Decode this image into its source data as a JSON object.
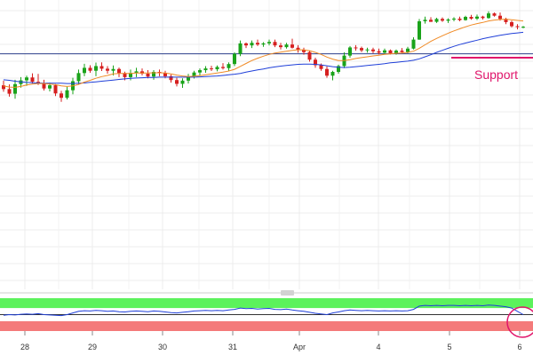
{
  "chart_data": [
    {
      "type": "candlestick",
      "x_ticks": [
        "28",
        "29",
        "30",
        "31",
        "Apr",
        "4",
        "5",
        "6"
      ],
      "price_range": [
        0.0,
        100.0
      ],
      "grid": true,
      "horizontal_line_level": 81.5,
      "support": {
        "label": "Support",
        "level": 80.2,
        "color": "#e0156b"
      },
      "colors": {
        "up": "#1aa31a",
        "down": "#d62020",
        "ma_fast": "#f08a24",
        "ma_slow": "#1f3fd8",
        "hline": "#2b3f8c"
      },
      "candles": [
        [
          70.7,
          72.3,
          68.5,
          69.4
        ],
        [
          69.4,
          71.0,
          66.8,
          67.8
        ],
        [
          67.8,
          72.6,
          66.1,
          71.1
        ],
        [
          71.1,
          73.5,
          69.9,
          72.4
        ],
        [
          72.4,
          74.0,
          70.5,
          73.4
        ],
        [
          73.4,
          74.8,
          71.3,
          71.9
        ],
        [
          71.9,
          74.6,
          70.8,
          71.3
        ],
        [
          71.3,
          72.6,
          68.9,
          69.6
        ],
        [
          69.6,
          71.6,
          68.6,
          70.7
        ],
        [
          70.7,
          71.1,
          67.0,
          67.9
        ],
        [
          67.9,
          68.8,
          65.0,
          66.4
        ],
        [
          66.4,
          70.2,
          65.8,
          69.0
        ],
        [
          69.0,
          73.3,
          67.6,
          72.1
        ],
        [
          72.1,
          76.1,
          71.0,
          74.9
        ],
        [
          74.9,
          78.1,
          73.8,
          76.7
        ],
        [
          76.7,
          77.6,
          75.0,
          75.7
        ],
        [
          75.7,
          78.5,
          73.8,
          77.3
        ],
        [
          77.3,
          78.6,
          75.6,
          76.4
        ],
        [
          76.4,
          77.3,
          74.7,
          75.7
        ],
        [
          75.7,
          77.5,
          74.1,
          76.3
        ],
        [
          76.3,
          76.8,
          73.5,
          74.9
        ],
        [
          74.9,
          75.4,
          72.4,
          73.5
        ],
        [
          73.5,
          76.1,
          72.4,
          74.9
        ],
        [
          74.9,
          76.7,
          73.5,
          75.5
        ],
        [
          75.5,
          76.5,
          74.1,
          74.7
        ],
        [
          74.7,
          75.9,
          73.1,
          73.7
        ],
        [
          73.7,
          75.9,
          72.6,
          75.3
        ],
        [
          75.3,
          76.1,
          73.8,
          75.0
        ],
        [
          75.0,
          75.7,
          73.1,
          73.8
        ],
        [
          73.8,
          74.4,
          71.6,
          72.5
        ],
        [
          72.5,
          73.3,
          70.3,
          71.2
        ],
        [
          71.2,
          73.1,
          69.8,
          72.3
        ],
        [
          72.3,
          74.6,
          71.3,
          73.8
        ],
        [
          73.8,
          75.7,
          73.0,
          75.1
        ],
        [
          75.1,
          76.5,
          74.1,
          75.9
        ],
        [
          75.9,
          77.3,
          75.0,
          76.5
        ],
        [
          76.5,
          77.4,
          75.6,
          76.2
        ],
        [
          76.2,
          77.5,
          75.5,
          77.0
        ],
        [
          77.0,
          78.3,
          76.1,
          76.6
        ],
        [
          76.6,
          78.6,
          75.7,
          78.0
        ],
        [
          78.0,
          82.0,
          77.3,
          81.5
        ],
        [
          81.5,
          86.1,
          80.7,
          85.1
        ],
        [
          85.1,
          85.4,
          83.5,
          84.4
        ],
        [
          84.4,
          86.1,
          83.5,
          85.3
        ],
        [
          85.3,
          86.4,
          84.2,
          84.7
        ],
        [
          84.7,
          85.5,
          83.9,
          85.1
        ],
        [
          85.1,
          86.4,
          84.4,
          85.6
        ],
        [
          85.6,
          86.4,
          83.8,
          84.4
        ],
        [
          84.4,
          85.3,
          83.0,
          83.8
        ],
        [
          83.8,
          85.3,
          83.3,
          84.7
        ],
        [
          84.7,
          86.7,
          83.3,
          83.6
        ],
        [
          83.6,
          84.5,
          81.9,
          82.9
        ],
        [
          82.9,
          83.6,
          81.2,
          82.1
        ],
        [
          82.1,
          82.6,
          78.8,
          79.5
        ],
        [
          79.5,
          80.2,
          76.7,
          77.6
        ],
        [
          77.6,
          78.2,
          75.7,
          76.3
        ],
        [
          76.3,
          77.2,
          73.3,
          74.0
        ],
        [
          74.0,
          75.7,
          72.4,
          75.3
        ],
        [
          75.3,
          77.8,
          74.7,
          77.3
        ],
        [
          77.3,
          82.0,
          76.6,
          80.9
        ],
        [
          80.9,
          84.2,
          80.2,
          83.7
        ],
        [
          83.7,
          84.5,
          82.6,
          83.5
        ],
        [
          83.5,
          84.0,
          82.1,
          82.7
        ],
        [
          82.7,
          83.6,
          81.9,
          83.0
        ],
        [
          83.0,
          83.6,
          81.7,
          82.4
        ],
        [
          82.4,
          83.3,
          81.3,
          81.9
        ],
        [
          81.9,
          83.3,
          81.5,
          82.7
        ],
        [
          82.7,
          83.0,
          81.3,
          81.7
        ],
        [
          81.7,
          83.0,
          81.2,
          82.6
        ],
        [
          82.6,
          83.5,
          81.9,
          82.1
        ],
        [
          82.1,
          83.9,
          81.7,
          83.3
        ],
        [
          83.3,
          87.2,
          83.0,
          86.4
        ],
        [
          86.4,
          93.5,
          86.3,
          92.7
        ],
        [
          92.7,
          94.3,
          91.9,
          93.2
        ],
        [
          93.2,
          94.1,
          92.5,
          92.5
        ],
        [
          92.5,
          93.9,
          92.1,
          93.5
        ],
        [
          93.5,
          94.0,
          92.5,
          92.9
        ],
        [
          92.9,
          93.7,
          92.1,
          93.3
        ],
        [
          93.3,
          94.1,
          92.7,
          93.6
        ],
        [
          93.6,
          94.3,
          92.7,
          93.1
        ],
        [
          93.1,
          94.6,
          92.9,
          94.2
        ],
        [
          94.2,
          94.9,
          93.2,
          93.6
        ],
        [
          93.6,
          95.0,
          93.1,
          94.3
        ],
        [
          94.3,
          94.6,
          93.3,
          93.8
        ],
        [
          93.8,
          96.1,
          93.6,
          95.4
        ],
        [
          95.4,
          95.7,
          94.3,
          94.6
        ],
        [
          94.6,
          95.7,
          92.9,
          93.5
        ],
        [
          93.5,
          93.9,
          91.7,
          92.4
        ],
        [
          92.4,
          92.9,
          90.6,
          91.0
        ],
        [
          91.0,
          91.7,
          89.9,
          90.7
        ],
        [
          90.7,
          91.1,
          90.3,
          90.8
        ]
      ],
      "ma_fast": [
        70.5,
        70.1,
        70.0,
        70.3,
        70.8,
        71.1,
        71.3,
        71.3,
        71.1,
        70.9,
        70.5,
        70.3,
        70.5,
        71.0,
        71.8,
        72.4,
        73.1,
        73.7,
        74.1,
        74.6,
        74.8,
        74.8,
        74.8,
        74.9,
        74.9,
        74.9,
        75.0,
        75.0,
        74.9,
        74.6,
        74.2,
        73.9,
        73.7,
        73.8,
        74.0,
        74.3,
        74.6,
        74.9,
        75.2,
        75.6,
        76.2,
        77.2,
        78.2,
        79.2,
        80.0,
        80.7,
        81.3,
        81.8,
        82.1,
        82.4,
        82.7,
        82.9,
        82.9,
        82.6,
        82.0,
        81.3,
        80.4,
        79.7,
        79.2,
        79.2,
        79.5,
        79.9,
        80.2,
        80.5,
        80.8,
        81.0,
        81.3,
        81.5,
        81.7,
        81.8,
        82.0,
        82.4,
        83.4,
        84.6,
        85.8,
        86.8,
        87.7,
        88.6,
        89.4,
        90.1,
        90.8,
        91.4,
        91.9,
        92.3,
        92.8,
        93.1,
        93.3,
        93.4,
        93.2,
        93.0,
        92.8
      ],
      "ma_slow": [
        72.6,
        72.4,
        72.1,
        71.9,
        71.7,
        71.6,
        71.5,
        71.4,
        71.4,
        71.4,
        71.4,
        71.3,
        71.3,
        71.4,
        71.5,
        71.7,
        71.9,
        72.1,
        72.3,
        72.5,
        72.7,
        72.9,
        73.1,
        73.2,
        73.3,
        73.4,
        73.4,
        73.5,
        73.5,
        73.5,
        73.5,
        73.5,
        73.5,
        73.5,
        73.6,
        73.7,
        73.8,
        73.9,
        74.1,
        74.3,
        74.5,
        74.8,
        75.2,
        75.6,
        76.0,
        76.3,
        76.7,
        77.0,
        77.3,
        77.5,
        77.7,
        77.9,
        78.0,
        78.0,
        77.9,
        77.7,
        77.4,
        77.1,
        76.9,
        76.8,
        76.9,
        77.1,
        77.3,
        77.5,
        77.7,
        77.9,
        78.1,
        78.4,
        78.6,
        78.8,
        79.0,
        79.3,
        79.8,
        80.5,
        81.2,
        82.0,
        82.7,
        83.4,
        84.1,
        84.7,
        85.2,
        85.7,
        86.2,
        86.7,
        87.1,
        87.5,
        87.9,
        88.2,
        88.5,
        88.7,
        88.9
      ]
    },
    {
      "type": "line",
      "y_range": [
        0,
        100
      ],
      "zones": {
        "upper": [
          70,
          100
        ],
        "lower": [
          0,
          30
        ],
        "upper_color": "#5cf25c",
        "lower_color": "#f47a7a"
      },
      "line_color": "#1f3fd8",
      "values": [
        48,
        50,
        49,
        51,
        52,
        51,
        53,
        50,
        49,
        48,
        47,
        50,
        55,
        60,
        62,
        61,
        63,
        62,
        60,
        61,
        59,
        58,
        60,
        61,
        60,
        59,
        61,
        60,
        58,
        56,
        55,
        57,
        59,
        61,
        62,
        63,
        62,
        63,
        62,
        64,
        66,
        70,
        68,
        69,
        67,
        68,
        69,
        66,
        65,
        67,
        64,
        62,
        60,
        57,
        54,
        52,
        50,
        55,
        58,
        62,
        64,
        63,
        62,
        63,
        62,
        61,
        62,
        61,
        62,
        61,
        62,
        66,
        76,
        78,
        77,
        78,
        77,
        78,
        78,
        77,
        78,
        77,
        78,
        77,
        79,
        78,
        76,
        74,
        70,
        60,
        50
      ]
    }
  ]
}
